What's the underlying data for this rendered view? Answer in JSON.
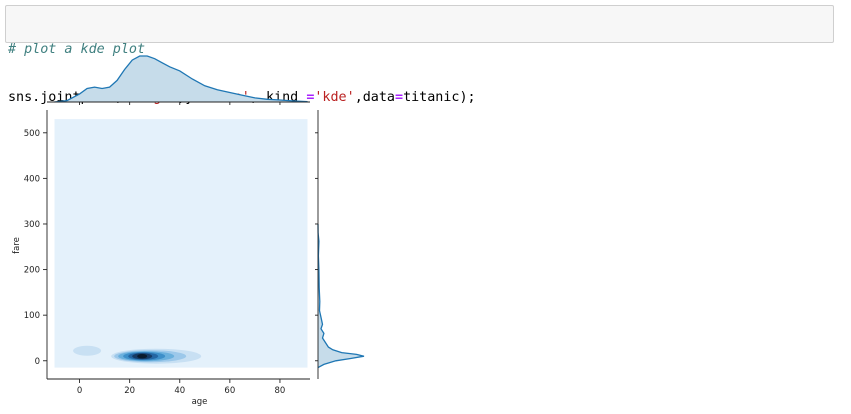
{
  "code_cell": {
    "comment": "# plot a kde plot",
    "code": {
      "t1": "sns.jointplot(x",
      "eq1": "=",
      "s1": "'age'",
      "t2": ",y",
      "eq2": "=",
      "s2": "'fare'",
      "t3": ", kind ",
      "eq3": "=",
      "s3": "'kde'",
      "t4": ",data",
      "eq4": "=",
      "t5": "titanic);"
    }
  },
  "chart_data": {
    "type": "kde-jointplot",
    "xlabel": "age",
    "ylabel": "fare",
    "x_ticks": [
      "0",
      "20",
      "40",
      "60",
      "80"
    ],
    "y_ticks": [
      "0",
      "100",
      "200",
      "300",
      "400",
      "500"
    ],
    "xlim": [
      -13,
      92
    ],
    "ylim": [
      -40,
      550
    ],
    "joint_fill_range": {
      "x": [
        -10,
        91
      ],
      "y": [
        -15,
        530
      ]
    },
    "marginal_x": {
      "x": [
        -10,
        -5,
        0,
        3,
        6,
        9,
        12,
        15,
        18,
        21,
        24,
        27,
        30,
        33,
        36,
        40,
        45,
        50,
        55,
        60,
        65,
        70,
        75,
        80,
        85,
        91
      ],
      "density": [
        0.0,
        0.001,
        0.006,
        0.01,
        0.011,
        0.01,
        0.011,
        0.016,
        0.024,
        0.031,
        0.034,
        0.034,
        0.032,
        0.029,
        0.026,
        0.023,
        0.017,
        0.012,
        0.009,
        0.007,
        0.005,
        0.003,
        0.002,
        0.0015,
        0.0008,
        0.0002
      ]
    },
    "marginal_y": {
      "y": [
        -15,
        -8,
        0,
        5,
        10,
        14,
        18,
        24,
        30,
        40,
        50,
        60,
        70,
        80,
        95,
        110,
        130,
        160,
        200,
        230,
        262,
        280,
        300
      ],
      "density": [
        0.0,
        0.004,
        0.012,
        0.022,
        0.031,
        0.026,
        0.016,
        0.01,
        0.007,
        0.005,
        0.003,
        0.004,
        0.002,
        0.003,
        0.002,
        0.001,
        0.0012,
        0.0008,
        0.0006,
        0.0003,
        0.0006,
        0.0001,
        0.0
      ]
    },
    "joint_peak": {
      "age": 25,
      "fare": 10
    },
    "colors": {
      "fill": "#e4f1fb",
      "levels": [
        "#c8e0f3",
        "#9cc8ea",
        "#6ab0dd",
        "#3d8fc9",
        "#2466a3",
        "#153b66",
        "#0a1b2e"
      ],
      "marginal_line": "#1f77b4",
      "marginal_fill": "#c6dcea"
    }
  }
}
